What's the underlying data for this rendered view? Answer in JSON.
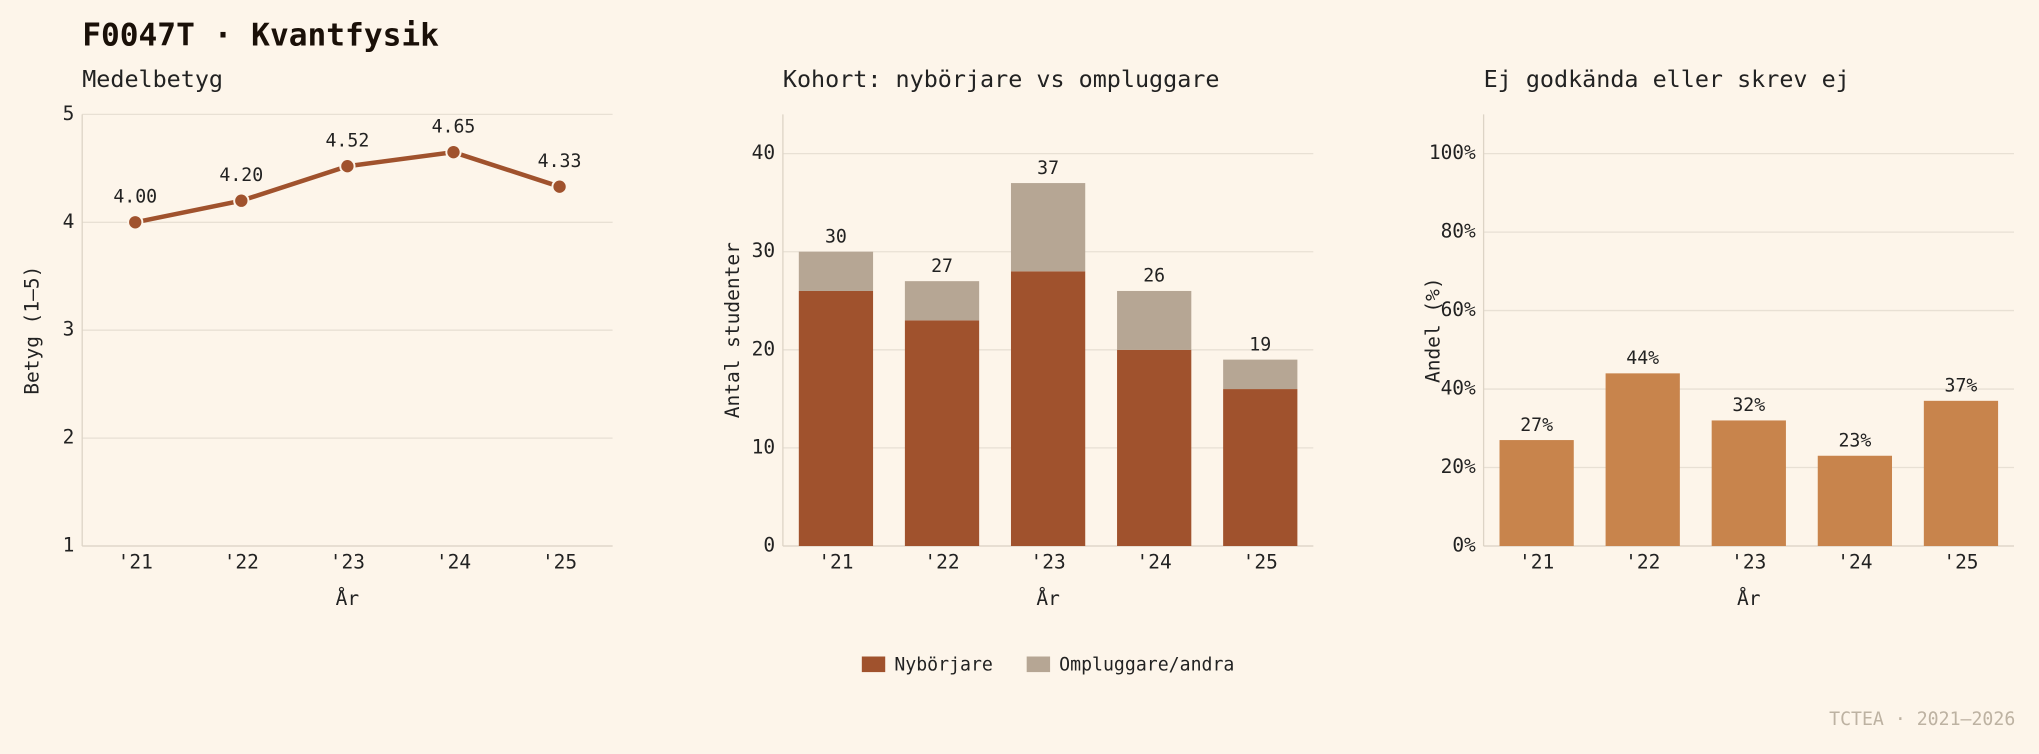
{
  "title": "F0047T · Kvantfysik",
  "footer": "TCTEA · 2021–2026",
  "chart_data": [
    {
      "type": "line",
      "title": "Medelbetyg",
      "xlabel": "År",
      "ylabel": "Betyg (1–5)",
      "categories": [
        "'21",
        "'22",
        "'23",
        "'24",
        "'25"
      ],
      "values": [
        4.0,
        4.2,
        4.52,
        4.65,
        4.33
      ],
      "value_labels": [
        "4.00",
        "4.20",
        "4.52",
        "4.65",
        "4.33"
      ],
      "color": "#a0522d",
      "ylim": [
        1,
        5
      ],
      "yticks": [
        1,
        2,
        3,
        4,
        5
      ],
      "grid": true
    },
    {
      "type": "bar",
      "stacked": true,
      "title": "Kohort: nybörjare vs ompluggare",
      "xlabel": "År",
      "ylabel": "Antal studenter",
      "categories": [
        "'21",
        "'22",
        "'23",
        "'24",
        "'25"
      ],
      "series": [
        {
          "name": "Nybörjare",
          "color": "#a0522d",
          "values": [
            26,
            23,
            28,
            20,
            16
          ]
        },
        {
          "name": "Ompluggare/andra",
          "color": "#b6a694",
          "values": [
            4,
            4,
            9,
            6,
            3
          ]
        }
      ],
      "totals": [
        30,
        27,
        37,
        26,
        19
      ],
      "ylim": [
        0,
        44
      ],
      "yticks": [
        0,
        10,
        20,
        30,
        40
      ],
      "grid": true,
      "legend": "bottom"
    },
    {
      "type": "bar",
      "title": "Ej godkända eller skrev ej",
      "xlabel": "År",
      "ylabel": "Andel (%)",
      "categories": [
        "'21",
        "'22",
        "'23",
        "'24",
        "'25"
      ],
      "values": [
        27,
        44,
        32,
        23,
        37
      ],
      "value_labels": [
        "27%",
        "44%",
        "32%",
        "23%",
        "37%"
      ],
      "color": "#c8844c",
      "ylim": [
        0,
        110
      ],
      "yticks": [
        {
          "value": 0,
          "label": "0%"
        },
        {
          "value": 20,
          "label": "20%"
        },
        {
          "value": 40,
          "label": "40%"
        },
        {
          "value": 60,
          "label": "60%"
        },
        {
          "value": 80,
          "label": "80%"
        },
        {
          "value": 100,
          "label": "100%"
        }
      ],
      "grid": true
    }
  ]
}
